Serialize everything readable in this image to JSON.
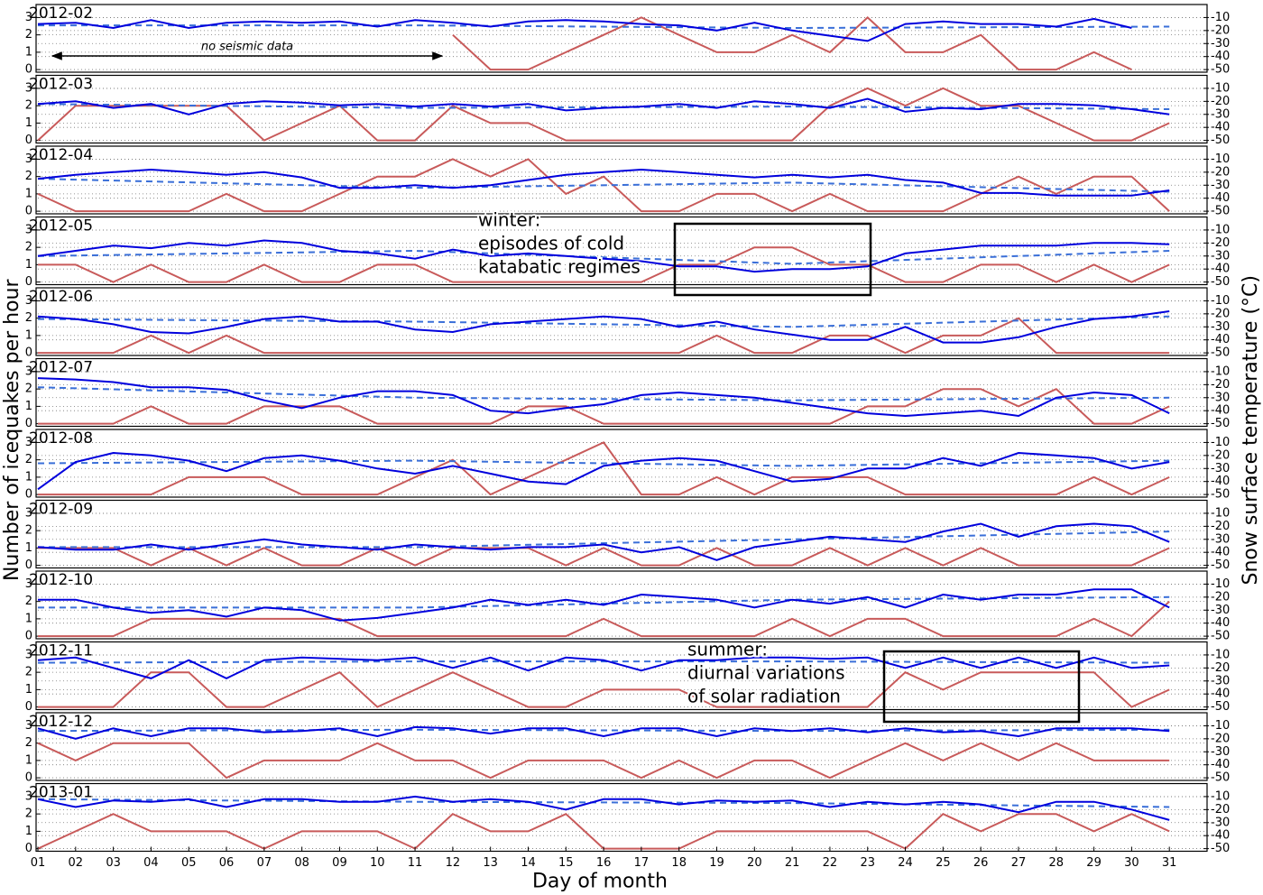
{
  "chart_data": {
    "type": "line",
    "xlabel": "Day of month",
    "ylabel": "Number of icequakes per hour",
    "y2label": "Snow surface temperature (°C)",
    "ylabel_color": "#8b0000",
    "y2label_color": "#1a1a9e",
    "x": [
      1,
      2,
      3,
      4,
      5,
      6,
      7,
      8,
      9,
      10,
      11,
      12,
      13,
      14,
      15,
      16,
      17,
      18,
      19,
      20,
      21,
      22,
      23,
      24,
      25,
      26,
      27,
      28,
      29,
      30,
      31
    ],
    "xlim": [
      1,
      32
    ],
    "xticks": [
      {
        "value": 1,
        "label": "01"
      },
      {
        "value": 2,
        "label": "02"
      },
      {
        "value": 3,
        "label": "03"
      },
      {
        "value": 4,
        "label": "04"
      },
      {
        "value": 5,
        "label": "05"
      },
      {
        "value": 6,
        "label": "06"
      },
      {
        "value": 7,
        "label": "07"
      },
      {
        "value": 8,
        "label": "08"
      },
      {
        "value": 9,
        "label": "09"
      },
      {
        "value": 10,
        "label": "10"
      },
      {
        "value": 11,
        "label": "11"
      },
      {
        "value": 12,
        "label": "12"
      },
      {
        "value": 13,
        "label": "13"
      },
      {
        "value": 14,
        "label": "14"
      },
      {
        "value": 15,
        "label": "15"
      },
      {
        "value": 16,
        "label": "16"
      },
      {
        "value": 17,
        "label": "17"
      },
      {
        "value": 18,
        "label": "18"
      },
      {
        "value": 19,
        "label": "19"
      },
      {
        "value": 20,
        "label": "20"
      },
      {
        "value": 21,
        "label": "21"
      },
      {
        "value": 22,
        "label": "22"
      },
      {
        "value": 23,
        "label": "23"
      },
      {
        "value": 24,
        "label": "24"
      },
      {
        "value": 25,
        "label": "25"
      },
      {
        "value": 26,
        "label": "26"
      },
      {
        "value": 27,
        "label": "27"
      },
      {
        "value": 28,
        "label": "28"
      },
      {
        "value": 29,
        "label": "29"
      },
      {
        "value": 30,
        "label": "30"
      },
      {
        "value": 31,
        "label": "31"
      }
    ],
    "ylim": [
      -0.15,
      3.75
    ],
    "yticks": [
      0,
      1,
      2,
      3
    ],
    "y2lim": [
      -52,
      0
    ],
    "y2ticks": [
      -50,
      -40,
      -30,
      -20,
      -10
    ],
    "grid": true,
    "trend_x": [
      1,
      11,
      21,
      31
    ],
    "colors": {
      "icequakes": "#c85a5a",
      "temperature": "#0000dd",
      "trend": "#3a6fd8"
    },
    "annotations": [
      [
        "no seismic data"
      ],
      [
        "winter:",
        "episodes of cold",
        "katabatic regimes"
      ],
      [
        "summer:",
        "diurnal variations",
        "of solar radiation"
      ]
    ],
    "panels": [
      {
        "title": "2012-02",
        "icequakes": [
          null,
          null,
          null,
          null,
          null,
          null,
          null,
          null,
          null,
          null,
          null,
          2,
          0,
          0,
          1,
          2,
          3,
          2,
          1,
          1,
          2,
          1,
          3,
          1,
          1,
          2,
          0,
          0,
          1,
          0,
          null
        ],
        "temperature": [
          -15,
          -14,
          -18,
          -12,
          -18,
          -14,
          -13,
          -14,
          -13,
          -17,
          -12,
          -14,
          -17,
          -13,
          -12,
          -13,
          -15,
          -16,
          -20,
          -14,
          -20,
          -24,
          -28,
          -15,
          -13,
          -15,
          -15,
          -17,
          -11,
          -18,
          null
        ],
        "trend": [
          -16,
          -16,
          -18,
          -17
        ]
      },
      {
        "title": "2012-03",
        "icequakes": [
          0,
          2,
          2,
          2,
          2,
          2,
          0,
          1,
          2,
          0,
          0,
          2,
          1,
          1,
          0,
          0,
          0,
          0,
          0,
          0,
          0,
          2,
          3,
          2,
          3,
          2,
          2,
          1,
          0,
          0,
          1
        ],
        "temperature": [
          -22,
          -20,
          -25,
          -22,
          -30,
          -22,
          -20,
          -21,
          -23,
          -22,
          -24,
          -22,
          -24,
          -22,
          -27,
          -25,
          -24,
          -22,
          -25,
          -20,
          -22,
          -25,
          -18,
          -28,
          -25,
          -26,
          -22,
          -22,
          -23,
          -26,
          -30
        ],
        "trend": [
          -22,
          -25,
          -24,
          -26
        ]
      },
      {
        "title": "2012-04",
        "icequakes": [
          1,
          0,
          0,
          0,
          0,
          1,
          0,
          0,
          1,
          2,
          2,
          3,
          2,
          3,
          1,
          2,
          0,
          0,
          1,
          1,
          0,
          1,
          0,
          0,
          0,
          1,
          2,
          1,
          2,
          2,
          0
        ],
        "temperature": [
          -25,
          -22,
          -20,
          -18,
          -20,
          -22,
          -20,
          -24,
          -32,
          -32,
          -30,
          -32,
          -30,
          -26,
          -22,
          -20,
          -18,
          -20,
          -22,
          -24,
          -22,
          -24,
          -22,
          -26,
          -28,
          -36,
          -36,
          -38,
          -38,
          -38,
          -34
        ],
        "trend": [
          -25,
          -32,
          -28,
          -35
        ]
      },
      {
        "title": "2012-05",
        "icequakes": [
          1,
          1,
          0,
          1,
          0,
          0,
          1,
          0,
          0,
          1,
          1,
          0,
          0,
          0,
          0,
          0,
          0,
          1,
          1,
          2,
          2,
          1,
          1,
          0,
          0,
          1,
          1,
          0,
          1,
          0,
          1
        ],
        "temperature": [
          -30,
          -26,
          -22,
          -24,
          -20,
          -22,
          -18,
          -20,
          -26,
          -28,
          -32,
          -25,
          -30,
          -28,
          -30,
          -32,
          -34,
          -38,
          -38,
          -42,
          -40,
          -40,
          -38,
          -28,
          -25,
          -22,
          -22,
          -22,
          -20,
          -20,
          -21
        ],
        "trend": [
          -30,
          -26,
          -36,
          -26
        ]
      },
      {
        "title": "2012-06",
        "icequakes": [
          0,
          0,
          0,
          1,
          0,
          1,
          0,
          0,
          0,
          0,
          0,
          0,
          0,
          0,
          0,
          0,
          0,
          0,
          1,
          0,
          0,
          1,
          1,
          0,
          1,
          1,
          2,
          0,
          0,
          0,
          0
        ],
        "temperature": [
          -22,
          -24,
          -28,
          -34,
          -35,
          -30,
          -24,
          -22,
          -26,
          -26,
          -32,
          -34,
          -28,
          -26,
          -24,
          -22,
          -24,
          -30,
          -26,
          -32,
          -36,
          -40,
          -40,
          -30,
          -42,
          -42,
          -38,
          -30,
          -24,
          -22,
          -18
        ],
        "trend": [
          -24,
          -26,
          -30,
          -22
        ]
      },
      {
        "title": "2012-07",
        "icequakes": [
          0,
          0,
          0,
          1,
          0,
          0,
          1,
          1,
          1,
          0,
          0,
          0,
          0,
          1,
          1,
          0,
          0,
          0,
          0,
          0,
          0,
          0,
          1,
          1,
          2,
          2,
          1,
          2,
          0,
          0,
          1
        ],
        "temperature": [
          -15,
          -16,
          -18,
          -22,
          -22,
          -24,
          -32,
          -38,
          -30,
          -25,
          -25,
          -28,
          -40,
          -42,
          -38,
          -35,
          -28,
          -26,
          -28,
          -30,
          -34,
          -38,
          -42,
          -44,
          -42,
          -40,
          -44,
          -30,
          -26,
          -28,
          -42
        ],
        "trend": [
          -22,
          -30,
          -32,
          -30
        ]
      },
      {
        "title": "2012-08",
        "icequakes": [
          0,
          0,
          0,
          0,
          1,
          1,
          1,
          0,
          0,
          0,
          1,
          2,
          0,
          1,
          2,
          3,
          0,
          0,
          1,
          0,
          1,
          1,
          1,
          0,
          0,
          0,
          0,
          0,
          1,
          0,
          1
        ],
        "temperature": [
          -46,
          -25,
          -18,
          -20,
          -24,
          -32,
          -22,
          -20,
          -24,
          -30,
          -34,
          -28,
          -34,
          -40,
          -42,
          -28,
          -24,
          -22,
          -24,
          -32,
          -40,
          -38,
          -30,
          -30,
          -22,
          -28,
          -18,
          -20,
          -22,
          -30,
          -25
        ],
        "trend": [
          -26,
          -24,
          -28,
          -24
        ]
      },
      {
        "title": "2012-09",
        "icequakes": [
          1,
          1,
          1,
          0,
          1,
          0,
          1,
          0,
          0,
          1,
          0,
          1,
          1,
          1,
          0,
          1,
          0,
          0,
          1,
          0,
          0,
          1,
          0,
          1,
          0,
          1,
          0,
          0,
          0,
          0,
          1
        ],
        "temperature": [
          -36,
          -38,
          -38,
          -34,
          -38,
          -34,
          -30,
          -34,
          -36,
          -38,
          -34,
          -36,
          -38,
          -36,
          -36,
          -34,
          -40,
          -36,
          -46,
          -36,
          -32,
          -28,
          -30,
          -32,
          -24,
          -18,
          -28,
          -20,
          -18,
          -20,
          -32
        ],
        "trend": [
          -36,
          -36,
          -30,
          -24
        ]
      },
      {
        "title": "2012-10",
        "icequakes": [
          0,
          0,
          0,
          1,
          1,
          1,
          1,
          1,
          1,
          0,
          0,
          0,
          0,
          0,
          0,
          1,
          0,
          0,
          0,
          0,
          1,
          0,
          1,
          1,
          0,
          0,
          0,
          0,
          1,
          0,
          2
        ],
        "temperature": [
          -22,
          -22,
          -28,
          -32,
          -30,
          -35,
          -28,
          -30,
          -38,
          -36,
          -32,
          -28,
          -22,
          -26,
          -22,
          -26,
          -18,
          -20,
          -22,
          -28,
          -22,
          -25,
          -20,
          -28,
          -18,
          -22,
          -18,
          -18,
          -14,
          -14,
          -28
        ],
        "trend": [
          -28,
          -28,
          -22,
          -20
        ]
      },
      {
        "title": "2012-11",
        "icequakes": [
          0,
          0,
          0,
          2,
          2,
          0,
          0,
          1,
          2,
          0,
          1,
          2,
          1,
          0,
          0,
          1,
          1,
          1,
          0,
          0,
          0,
          0,
          0,
          2,
          1,
          2,
          2,
          2,
          2,
          0,
          1
        ],
        "temperature": [
          -14,
          -12,
          -20,
          -28,
          -14,
          -28,
          -14,
          -12,
          -13,
          -14,
          -12,
          -20,
          -12,
          -22,
          -12,
          -14,
          -22,
          -14,
          -14,
          -12,
          -12,
          -13,
          -12,
          -20,
          -12,
          -20,
          -12,
          -20,
          -12,
          -20,
          -18
        ],
        "trend": [
          -16,
          -15,
          -15,
          -16
        ]
      },
      {
        "title": "2012-12",
        "icequakes": [
          2,
          1,
          2,
          2,
          2,
          0,
          1,
          1,
          1,
          2,
          1,
          1,
          0,
          1,
          1,
          1,
          0,
          1,
          0,
          1,
          1,
          0,
          1,
          2,
          1,
          2,
          1,
          2,
          1,
          1,
          1
        ],
        "temperature": [
          -12,
          -20,
          -12,
          -18,
          -12,
          -12,
          -15,
          -14,
          -12,
          -18,
          -11,
          -12,
          -16,
          -12,
          -12,
          -18,
          -12,
          -12,
          -18,
          -12,
          -14,
          -12,
          -15,
          -12,
          -15,
          -14,
          -18,
          -12,
          -12,
          -12,
          -14
        ],
        "trend": [
          -14,
          -13,
          -14,
          -13
        ]
      },
      {
        "title": "2013-01",
        "icequakes": [
          0,
          1,
          2,
          1,
          1,
          1,
          0,
          1,
          1,
          1,
          0,
          2,
          1,
          1,
          2,
          0,
          0,
          0,
          1,
          1,
          1,
          1,
          1,
          0,
          2,
          1,
          2,
          2,
          1,
          2,
          1
        ],
        "temperature": [
          -12,
          -18,
          -13,
          -14,
          -12,
          -18,
          -12,
          -12,
          -14,
          -14,
          -10,
          -14,
          -12,
          -14,
          -20,
          -12,
          -12,
          -16,
          -13,
          -14,
          -13,
          -18,
          -14,
          -16,
          -14,
          -16,
          -22,
          -14,
          -14,
          -20,
          -28
        ],
        "trend": [
          -12,
          -14,
          -15,
          -18
        ]
      }
    ]
  }
}
